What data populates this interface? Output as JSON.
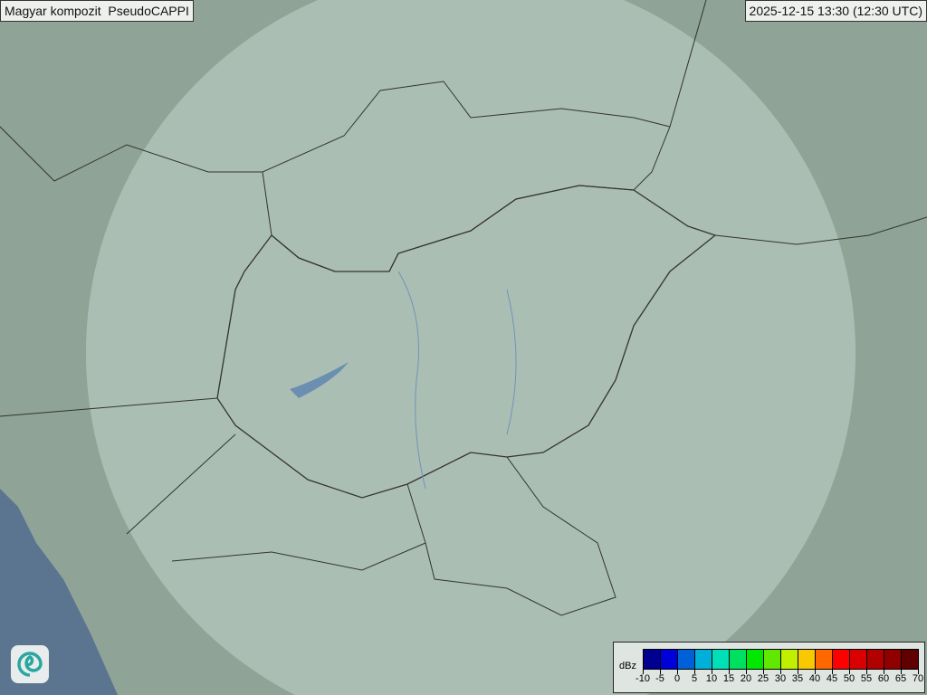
{
  "header": {
    "title": "Magyar kompozit  PseudoCAPPI",
    "timestamp": "2025-12-15 13:30 (12:30 UTC)"
  },
  "map": {
    "background_color": "#8fa397",
    "radar_coverage_color": "#cfe0d8",
    "sea_color": "#5b7590",
    "border_color": "#333333",
    "radar_echoes": []
  },
  "legend": {
    "unit": "dBz",
    "ticks": [
      "-10",
      "-5",
      "0",
      "5",
      "10",
      "15",
      "20",
      "25",
      "30",
      "35",
      "40",
      "45",
      "50",
      "55",
      "60",
      "65",
      "70"
    ],
    "colors": [
      "#000090",
      "#0000d8",
      "#0060d8",
      "#00b0d8",
      "#00e0b8",
      "#00e060",
      "#00e800",
      "#60e800",
      "#c0f000",
      "#f8c800",
      "#ff6800",
      "#ff0000",
      "#d80000",
      "#b00000",
      "#900000",
      "#600000"
    ]
  },
  "logo": {
    "icon": "swirl-logo-icon"
  }
}
